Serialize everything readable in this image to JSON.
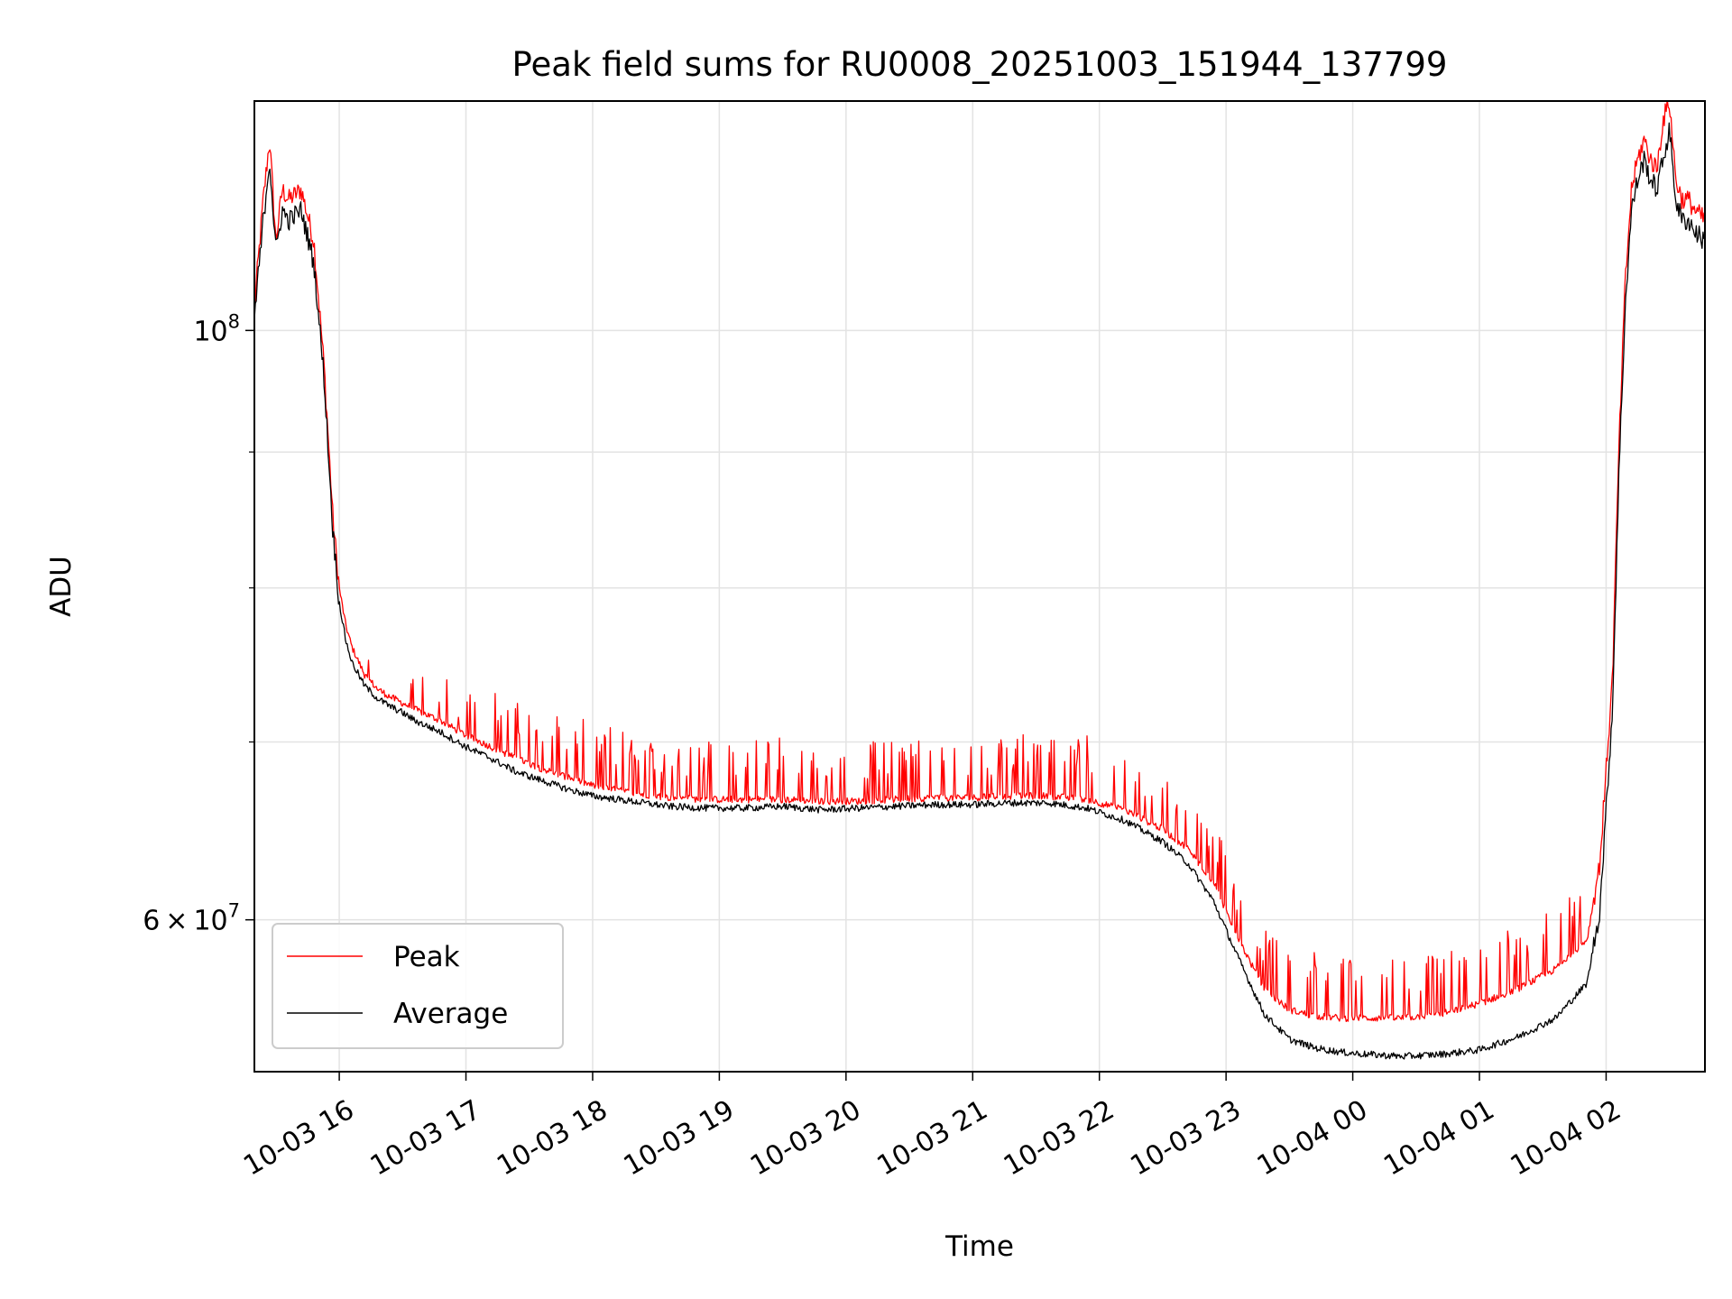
{
  "chart_data": {
    "type": "line",
    "title": "Peak field sums for RU0008_20251003_151944_137799",
    "xlabel": "Time",
    "ylabel": "ADU",
    "yscale": "log",
    "x_unit": "hours since 10-03 15:00",
    "xlim": [
      0.33,
      11.78
    ],
    "ylim": [
      52600000,
      122000000
    ],
    "grid": true,
    "x_ticks": [
      {
        "value": 1,
        "label": "10-03 16"
      },
      {
        "value": 2,
        "label": "10-03 17"
      },
      {
        "value": 3,
        "label": "10-03 18"
      },
      {
        "value": 4,
        "label": "10-03 19"
      },
      {
        "value": 5,
        "label": "10-03 20"
      },
      {
        "value": 6,
        "label": "10-03 21"
      },
      {
        "value": 7,
        "label": "10-03 22"
      },
      {
        "value": 8,
        "label": "10-03 23"
      },
      {
        "value": 9,
        "label": "10-04 00"
      },
      {
        "value": 10,
        "label": "10-04 01"
      },
      {
        "value": 11,
        "label": "10-04 02"
      }
    ],
    "y_major_ticks": [
      {
        "value": 60000000,
        "mantissa": "6",
        "base": "10",
        "exp": "7"
      },
      {
        "value": 100000000,
        "mantissa": "",
        "base": "10",
        "exp": "8"
      }
    ],
    "y_minor_ticks": [
      70000000,
      80000000,
      90000000
    ],
    "legend": {
      "location": "lower-left",
      "entries": [
        "Peak",
        "Average"
      ]
    },
    "series": [
      {
        "name": "Peak",
        "color": "#ff0000",
        "x": [
          0.33,
          0.4,
          0.45,
          0.5,
          0.55,
          0.6,
          0.7,
          0.8,
          0.88,
          0.95,
          1.0,
          1.05,
          1.1,
          1.2,
          1.3,
          1.4,
          1.5,
          1.6,
          1.8,
          2.0,
          2.2,
          2.4,
          2.6,
          2.8,
          3.0,
          3.3,
          3.6,
          3.9,
          4.2,
          4.5,
          4.8,
          5.1,
          5.4,
          5.7,
          6.0,
          6.3,
          6.6,
          6.9,
          7.2,
          7.5,
          7.7,
          7.9,
          8.1,
          8.3,
          8.5,
          8.7,
          8.9,
          9.1,
          9.4,
          9.7,
          10.0,
          10.3,
          10.6,
          10.85,
          10.95,
          11.05,
          11.1,
          11.15,
          11.2,
          11.25,
          11.3,
          11.35,
          11.4,
          11.45,
          11.5,
          11.55,
          11.6,
          11.65,
          11.7,
          11.78
        ],
        "values": [
          102000000,
          112000000,
          118000000,
          108000000,
          113000000,
          112000000,
          113000000,
          108000000,
          97000000,
          85000000,
          80000000,
          77500000,
          76000000,
          74200000,
          73300000,
          72800000,
          72400000,
          72000000,
          71300000,
          70400000,
          69700000,
          69000000,
          68400000,
          67900000,
          67400000,
          67000000,
          66700000,
          66600000,
          66600000,
          66600000,
          66500000,
          66500000,
          66600000,
          66700000,
          66700000,
          66800000,
          66800000,
          66600000,
          66000000,
          64900000,
          63800000,
          62000000,
          59000000,
          56500000,
          55500000,
          55200000,
          55100000,
          55100000,
          55100000,
          55300000,
          55800000,
          56500000,
          57500000,
          59000000,
          63000000,
          74000000,
          90000000,
          104000000,
          113000000,
          116000000,
          118000000,
          116000000,
          115000000,
          120000000,
          122000000,
          114000000,
          112000000,
          112000000,
          111000000,
          110000000
        ]
      },
      {
        "name": "Average",
        "color": "#000000",
        "x": [
          0.33,
          0.4,
          0.45,
          0.5,
          0.55,
          0.6,
          0.7,
          0.8,
          0.88,
          0.95,
          1.0,
          1.05,
          1.1,
          1.2,
          1.3,
          1.4,
          1.5,
          1.6,
          1.8,
          2.0,
          2.2,
          2.4,
          2.6,
          2.8,
          3.0,
          3.3,
          3.6,
          3.9,
          4.2,
          4.5,
          4.8,
          5.1,
          5.4,
          5.7,
          6.0,
          6.3,
          6.6,
          6.9,
          7.2,
          7.5,
          7.7,
          7.9,
          8.1,
          8.3,
          8.5,
          8.7,
          8.9,
          9.1,
          9.4,
          9.7,
          10.0,
          10.3,
          10.6,
          10.85,
          10.95,
          11.05,
          11.1,
          11.15,
          11.2,
          11.25,
          11.3,
          11.35,
          11.4,
          11.45,
          11.5,
          11.55,
          11.6,
          11.65,
          11.7,
          11.78
        ],
        "values": [
          101000000,
          110000000,
          116000000,
          107000000,
          111000000,
          110000000,
          111000000,
          106000000,
          96000000,
          84000000,
          79000000,
          76500000,
          75000000,
          73500000,
          72700000,
          72200000,
          71800000,
          71300000,
          70600000,
          69700000,
          69000000,
          68200000,
          67700000,
          67200000,
          66800000,
          66500000,
          66200000,
          66100000,
          66100000,
          66200000,
          66000000,
          66100000,
          66200000,
          66300000,
          66300000,
          66400000,
          66400000,
          66100000,
          65400000,
          64200000,
          63000000,
          61000000,
          58000000,
          55300000,
          54100000,
          53700000,
          53500000,
          53400000,
          53300000,
          53400000,
          53600000,
          54200000,
          55100000,
          56800000,
          60500000,
          72000000,
          88000000,
          102000000,
          111000000,
          114000000,
          116000000,
          114000000,
          113000000,
          116000000,
          119000000,
          112000000,
          110000000,
          110000000,
          109000000,
          108000000
        ]
      }
    ]
  }
}
